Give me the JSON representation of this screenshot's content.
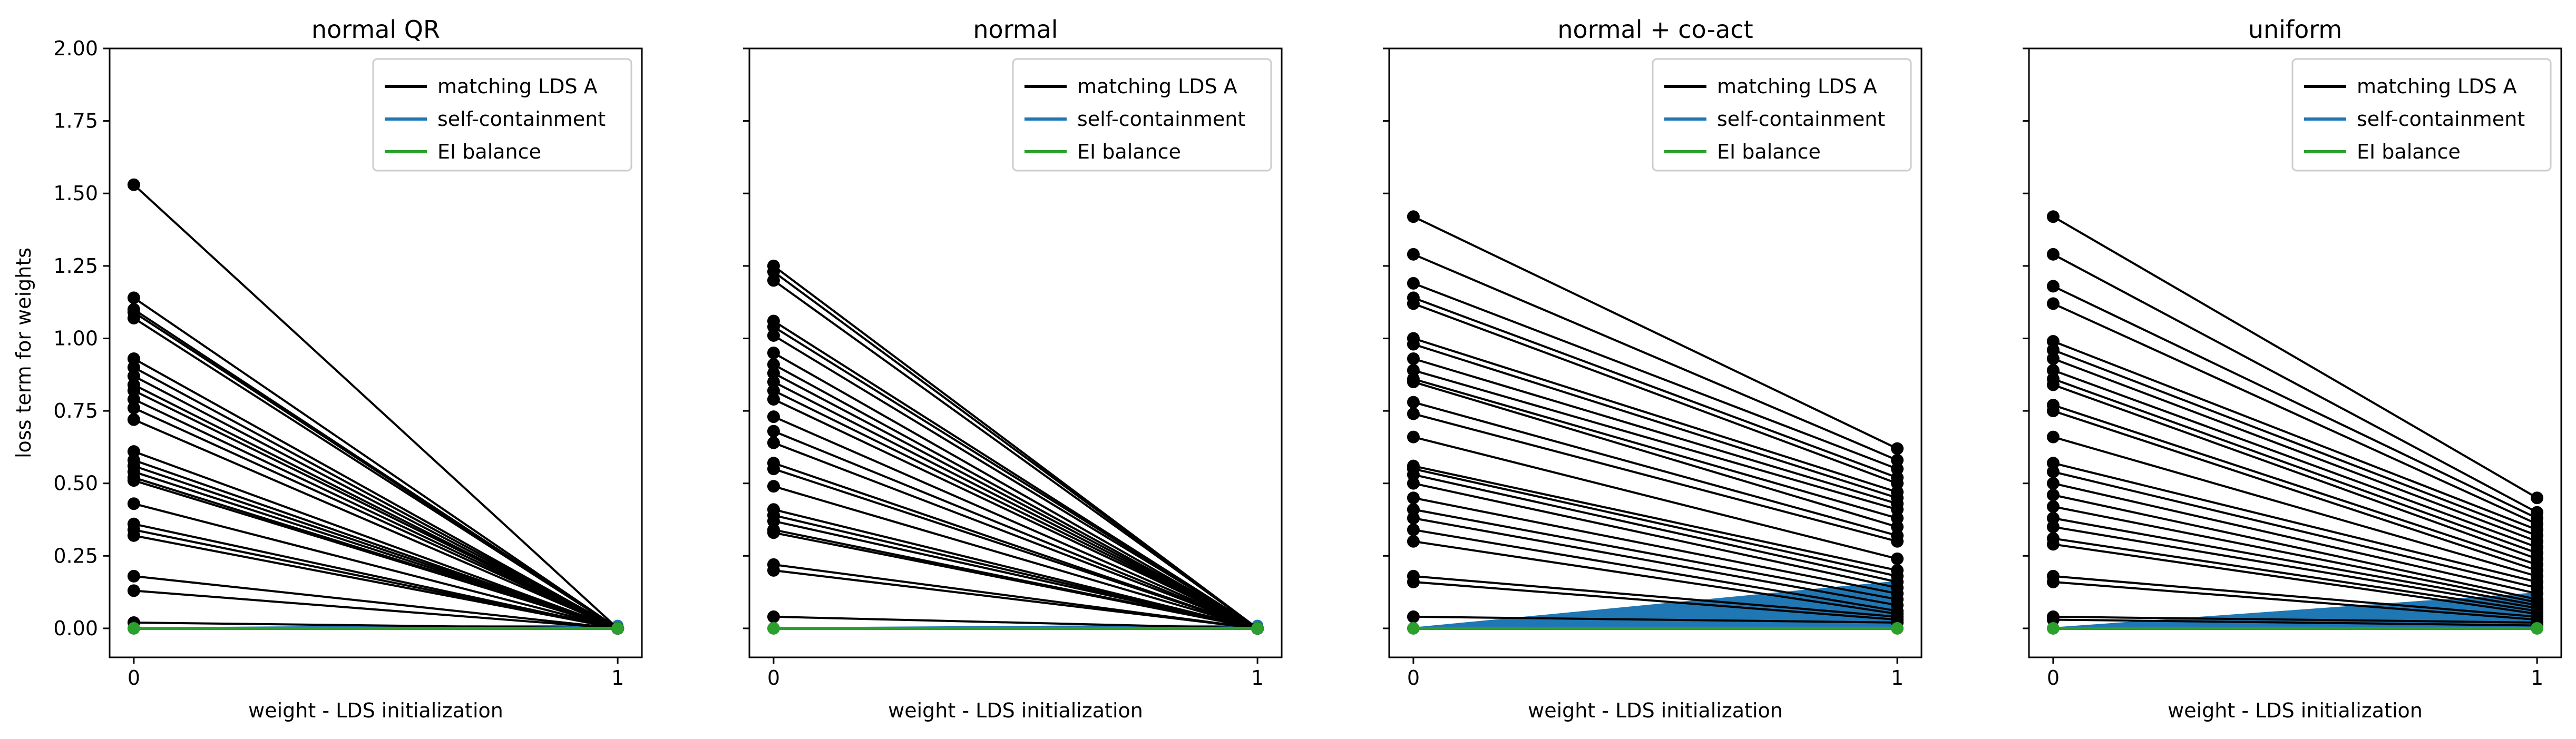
{
  "chart_data": {
    "type": "line",
    "x": [
      0,
      1
    ],
    "xticks": [
      "0",
      "1"
    ],
    "xlabel": "weight - LDS initialization",
    "ylabel": "loss term for weights",
    "ylim": [
      -0.1,
      2.0
    ],
    "yticks": [
      "0.00",
      "0.25",
      "0.50",
      "0.75",
      "1.00",
      "1.25",
      "1.50",
      "1.75",
      "2.00"
    ],
    "grid": false,
    "legend_placement": "upper right",
    "legend": [
      "matching LDS A",
      "self-containment",
      "EI balance"
    ],
    "colors": {
      "matching": "#000000",
      "self": "#1f77b4",
      "ei": "#2ca02c"
    },
    "panels": [
      {
        "title": "normal QR",
        "series": [
          {
            "name": "matching LDS A",
            "start": [
              1.53,
              1.14,
              1.1,
              1.09,
              1.07,
              0.93,
              0.9,
              0.87,
              0.84,
              0.82,
              0.79,
              0.76,
              0.72,
              0.61,
              0.58,
              0.56,
              0.54,
              0.52,
              0.51,
              0.43,
              0.36,
              0.34,
              0.32,
              0.18,
              0.13,
              0.02
            ],
            "end": [
              0.0,
              0.0,
              0.0,
              0.0,
              0.0,
              0.0,
              0.0,
              0.0,
              0.0,
              0.0,
              0.0,
              0.0,
              0.0,
              0.0,
              0.0,
              0.0,
              0.0,
              0.0,
              0.0,
              0.0,
              0.0,
              0.0,
              0.0,
              0.0,
              0.0,
              0.0
            ]
          },
          {
            "name": "self-containment",
            "start": [
              0.0,
              0.0,
              0.0
            ],
            "end": [
              0.01,
              0.005,
              0.0
            ]
          },
          {
            "name": "EI balance",
            "start": [
              0.0
            ],
            "end": [
              0.0
            ]
          }
        ]
      },
      {
        "title": "normal",
        "series": [
          {
            "name": "matching LDS A",
            "start": [
              1.25,
              1.23,
              1.2,
              1.06,
              1.04,
              1.01,
              0.95,
              0.91,
              0.88,
              0.85,
              0.82,
              0.79,
              0.73,
              0.68,
              0.64,
              0.57,
              0.55,
              0.49,
              0.41,
              0.39,
              0.37,
              0.34,
              0.33,
              0.22,
              0.2,
              0.04
            ],
            "end": [
              0.0,
              0.0,
              0.0,
              0.0,
              0.0,
              0.0,
              0.0,
              0.0,
              0.0,
              0.0,
              0.0,
              0.0,
              0.0,
              0.0,
              0.0,
              0.0,
              0.0,
              0.0,
              0.0,
              0.0,
              0.0,
              0.0,
              0.0,
              0.0,
              0.0,
              0.0
            ]
          },
          {
            "name": "self-containment",
            "start": [
              0.0,
              0.0,
              0.0
            ],
            "end": [
              0.01,
              0.005,
              0.0
            ]
          },
          {
            "name": "EI balance",
            "start": [
              0.0
            ],
            "end": [
              0.0
            ]
          }
        ]
      },
      {
        "title": "normal + co-act",
        "series": [
          {
            "name": "matching LDS A",
            "start": [
              1.42,
              1.29,
              1.19,
              1.14,
              1.12,
              1.0,
              0.98,
              0.93,
              0.89,
              0.86,
              0.85,
              0.78,
              0.74,
              0.66,
              0.56,
              0.55,
              0.53,
              0.5,
              0.45,
              0.41,
              0.38,
              0.34,
              0.3,
              0.18,
              0.16,
              0.04
            ],
            "end": [
              0.62,
              0.58,
              0.55,
              0.52,
              0.5,
              0.47,
              0.45,
              0.43,
              0.41,
              0.38,
              0.35,
              0.32,
              0.3,
              0.24,
              0.2,
              0.18,
              0.16,
              0.14,
              0.12,
              0.1,
              0.08,
              0.06,
              0.05,
              0.04,
              0.03,
              0.02
            ]
          },
          {
            "name": "self-containment",
            "start": [
              0.0,
              0.0,
              0.0,
              0.0
            ],
            "end": [
              0.16,
              0.12,
              0.08,
              0.04
            ]
          },
          {
            "name": "EI balance",
            "start": [
              0.0
            ],
            "end": [
              0.0
            ]
          }
        ]
      },
      {
        "title": "uniform",
        "series": [
          {
            "name": "matching LDS A",
            "start": [
              1.42,
              1.29,
              1.18,
              1.12,
              0.99,
              0.96,
              0.93,
              0.89,
              0.86,
              0.84,
              0.77,
              0.75,
              0.66,
              0.57,
              0.54,
              0.5,
              0.46,
              0.42,
              0.38,
              0.35,
              0.31,
              0.29,
              0.18,
              0.16,
              0.04,
              0.03
            ],
            "end": [
              0.45,
              0.4,
              0.38,
              0.36,
              0.34,
              0.32,
              0.3,
              0.28,
              0.26,
              0.24,
              0.22,
              0.2,
              0.18,
              0.16,
              0.14,
              0.12,
              0.1,
              0.09,
              0.08,
              0.07,
              0.06,
              0.05,
              0.04,
              0.03,
              0.02,
              0.01
            ]
          },
          {
            "name": "self-containment",
            "start": [
              0.0,
              0.0,
              0.0,
              0.0
            ],
            "end": [
              0.12,
              0.09,
              0.06,
              0.03
            ]
          },
          {
            "name": "EI balance",
            "start": [
              0.0
            ],
            "end": [
              0.0
            ]
          }
        ]
      }
    ]
  }
}
